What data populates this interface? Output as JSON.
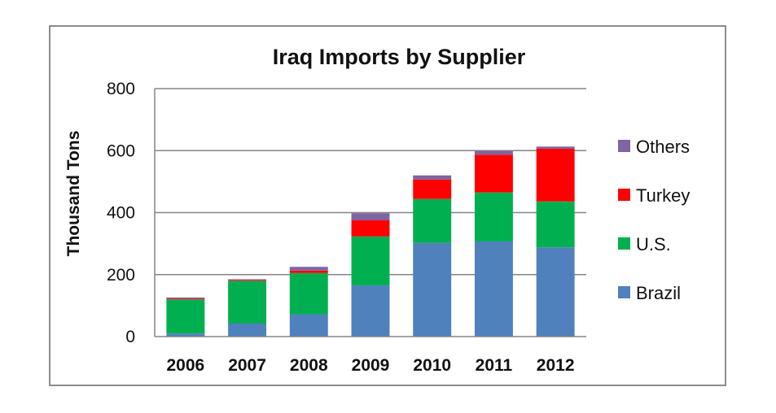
{
  "chart_data": {
    "type": "bar",
    "stacked": true,
    "title": "Iraq Imports by Supplier",
    "xlabel": "",
    "ylabel": "Thousand Tons",
    "ylim": [
      0,
      800
    ],
    "yticks": [
      0,
      200,
      400,
      600,
      800
    ],
    "grid": true,
    "legend_position": "right",
    "categories": [
      "2006",
      "2007",
      "2008",
      "2009",
      "2010",
      "2011",
      "2012"
    ],
    "series": [
      {
        "name": "Brazil",
        "color": "#4f81bd",
        "values": [
          10,
          42,
          72,
          165,
          302,
          307,
          288
        ]
      },
      {
        "name": "U.S.",
        "color": "#00b050",
        "values": [
          110,
          138,
          133,
          158,
          142,
          158,
          148
        ]
      },
      {
        "name": "Turkey",
        "color": "#ff0000",
        "values": [
          3,
          3,
          8,
          52,
          63,
          122,
          170
        ]
      },
      {
        "name": "Others",
        "color": "#8064a2",
        "values": [
          3,
          2,
          12,
          23,
          13,
          12,
          7
        ]
      }
    ],
    "legend_order": [
      "Others",
      "Turkey",
      "U.S.",
      "Brazil"
    ]
  }
}
